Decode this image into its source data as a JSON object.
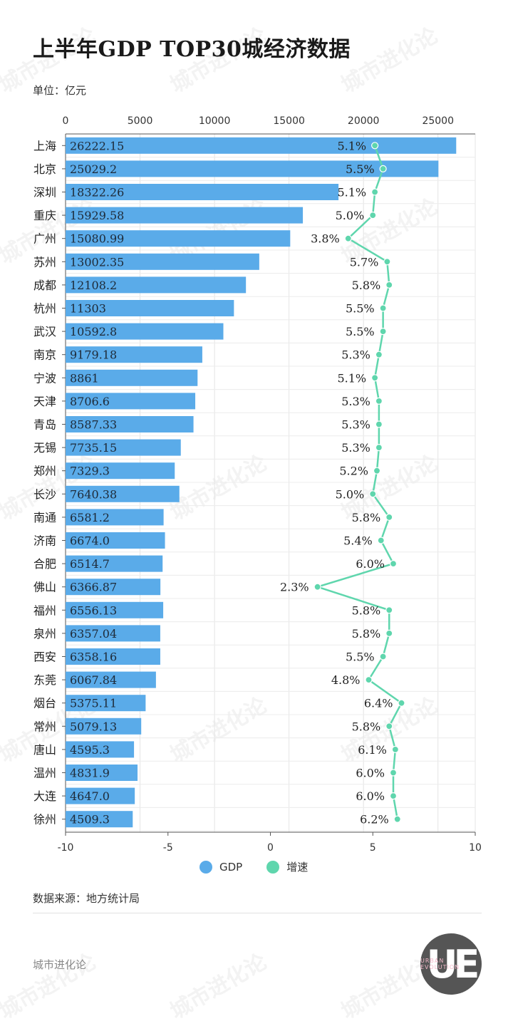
{
  "title": "上半年GDP TOP30城经济数据",
  "unit": "单位：亿元",
  "legend": {
    "gdp_label": "GDP",
    "growth_label": "增速",
    "gdp_color": "#5aabe9",
    "growth_color": "#5fd6ad"
  },
  "source": "数据来源：地方统计局",
  "brand": "城市进化论",
  "logo": {
    "text": "UE",
    "ring": "URBAN EVOLUTION"
  },
  "watermark": {
    "text": "城市进化论",
    "sub": "URBAN EVOLUTION"
  },
  "chart_data": {
    "type": "bar",
    "categories": [
      "上海",
      "北京",
      "深圳",
      "重庆",
      "广州",
      "苏州",
      "成都",
      "杭州",
      "武汉",
      "南京",
      "宁波",
      "天津",
      "青岛",
      "无锡",
      "郑州",
      "长沙",
      "南通",
      "济南",
      "合肥",
      "佛山",
      "福州",
      "泉州",
      "西安",
      "东莞",
      "烟台",
      "常州",
      "唐山",
      "温州",
      "大连",
      "徐州"
    ],
    "gdp_labels": [
      "26222.15",
      "25029.2",
      "18322.26",
      "15929.58",
      "15080.99",
      "13002.35",
      "12108.2",
      "11303",
      "10592.8",
      "9179.18",
      "8861",
      "8706.6",
      "8587.33",
      "7735.15",
      "7329.3",
      "7640.38",
      "6581.2",
      "6674.0",
      "6514.7",
      "6366.87",
      "6556.13",
      "6357.04",
      "6358.16",
      "6067.84",
      "5375.11",
      "5079.13",
      "4595.3",
      "4831.9",
      "4647.0",
      "4509.3"
    ],
    "gdp_values": [
      26222.15,
      25029.2,
      18322.26,
      15929.58,
      15080.99,
      13002.35,
      12108.2,
      11303,
      10592.8,
      9179.18,
      8861,
      8706.6,
      8587.33,
      7735.15,
      7329.3,
      7640.38,
      6581.2,
      6674.0,
      6514.7,
      6366.87,
      6556.13,
      6357.04,
      6358.16,
      6067.84,
      5375.11,
      5079.13,
      4595.3,
      4831.9,
      4647.0,
      4509.3
    ],
    "growth_labels": [
      "5.1%",
      "5.5%",
      "5.1%",
      "5.0%",
      "3.8%",
      "5.7%",
      "5.8%",
      "5.5%",
      "5.5%",
      "5.3%",
      "5.1%",
      "5.3%",
      "5.3%",
      "5.3%",
      "5.2%",
      "5.0%",
      "5.8%",
      "5.4%",
      "6.0%",
      "2.3%",
      "5.8%",
      "5.8%",
      "5.5%",
      "4.8%",
      "6.4%",
      "5.8%",
      "6.1%",
      "6.0%",
      "6.0%",
      "6.2%"
    ],
    "growth_values": [
      5.1,
      5.5,
      5.1,
      5.0,
      3.8,
      5.7,
      5.8,
      5.5,
      5.5,
      5.3,
      5.1,
      5.3,
      5.3,
      5.3,
      5.2,
      5.0,
      5.8,
      5.4,
      6.0,
      2.3,
      5.8,
      5.8,
      5.5,
      4.8,
      6.4,
      5.8,
      6.1,
      6.0,
      6.0,
      6.2
    ],
    "top_axis": {
      "ticks": [
        0,
        5000,
        10000,
        15000,
        20000,
        25000
      ],
      "range": [
        0,
        27500
      ]
    },
    "bottom_axis": {
      "ticks": [
        -10,
        -5,
        0,
        5,
        10
      ],
      "range": [
        -10,
        10
      ]
    },
    "grid": true
  }
}
